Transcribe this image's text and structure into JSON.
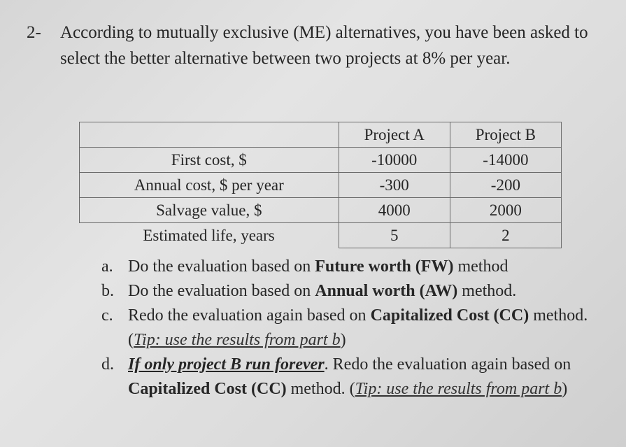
{
  "question": {
    "number": "2-",
    "text": "According to mutually exclusive (ME) alternatives, you have been asked to select the better alternative between two projects at 8% per year."
  },
  "table": {
    "headers": [
      "",
      "Project A",
      "Project B"
    ],
    "rows": [
      {
        "label": "First cost, $",
        "a": "-10000",
        "b": "-14000"
      },
      {
        "label": "Annual cost, $ per year",
        "a": "-300",
        "b": "-200"
      },
      {
        "label": "Salvage value, $",
        "a": "4000",
        "b": "2000"
      },
      {
        "label": "Estimated life, years",
        "a": "5",
        "b": "2"
      }
    ]
  },
  "parts": [
    {
      "marker": "a.",
      "pre": "Do the evaluation based on ",
      "bold": "Future worth (FW)",
      "post": " method"
    },
    {
      "marker": "b.",
      "pre": "Do the evaluation based on ",
      "bold": "Annual worth (AW)",
      "post": " method."
    },
    {
      "marker": "c.",
      "pre": "Redo the evaluation again based on ",
      "bold": "Capitalized Cost (CC)",
      "post": " method. (",
      "tip": "Tip: use the results from part b",
      "end": ")"
    },
    {
      "marker": "d.",
      "highlight": "If only project B run forever",
      "pre": ". Redo the evaluation again based on ",
      "bold": "Capitalized Cost (CC)",
      "post": " method. (",
      "tip": "Tip: use the results from part b",
      "end": ")"
    }
  ]
}
